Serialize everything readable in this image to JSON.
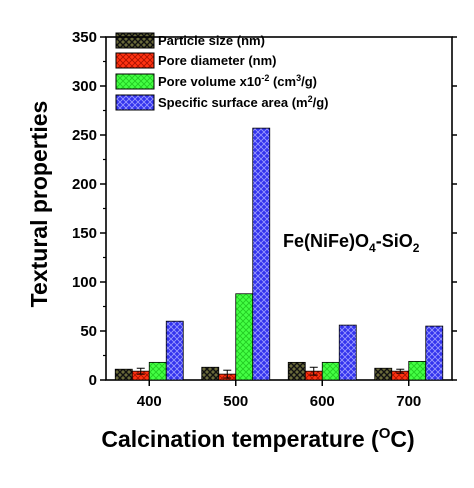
{
  "chart_data": {
    "type": "bar",
    "categories": [
      "400",
      "500",
      "600",
      "700"
    ],
    "series": [
      {
        "name": "Particle size (nm)",
        "color": "#222222",
        "pattern": "crosshatch-dark",
        "values": [
          11,
          13,
          18,
          12
        ],
        "errors": [
          0,
          0,
          0,
          0
        ]
      },
      {
        "name": "Pore diameter (nm)",
        "color": "#ee2200",
        "pattern": "crosshatch-red",
        "values": [
          9,
          6,
          9,
          9
        ],
        "errors": [
          3,
          4,
          4,
          2
        ]
      },
      {
        "name": "Pore volume x10-2 (cm3/g)",
        "color": "#33ff33",
        "pattern": "crosshatch-green",
        "values": [
          18,
          88,
          18,
          19
        ],
        "errors": [
          0,
          0,
          0,
          0
        ]
      },
      {
        "name": "Specific surface area (m2/g)",
        "color": "#2222dd",
        "pattern": "crosshatch-blue",
        "values": [
          60,
          257,
          56,
          55
        ],
        "errors": [
          0,
          0,
          0,
          0
        ]
      }
    ],
    "legend": [
      {
        "base": "Particle size (nm)"
      },
      {
        "base": "Pore diameter (nm)"
      },
      {
        "base": "Pore volume x10",
        "sup": "-2",
        "rest": " (cm",
        "sup2": "3",
        "tail": "/g)"
      },
      {
        "base": "Specific surface area (m",
        "sup": "2",
        "rest": "/g)"
      }
    ],
    "ylim": [
      0,
      350
    ],
    "yticks": [
      "0",
      "50",
      "100",
      "150",
      "200",
      "250",
      "300",
      "350"
    ],
    "ylabel": "Textural properties",
    "xlabel": {
      "base": "Calcination temperature (",
      "sup": "O",
      "tail": "C)"
    },
    "annotation": {
      "p1": "Fe(NiFe)O",
      "s1": "4",
      "p2": "-SiO",
      "s2": "2"
    },
    "legend_placement": "top-left",
    "grid": false
  }
}
